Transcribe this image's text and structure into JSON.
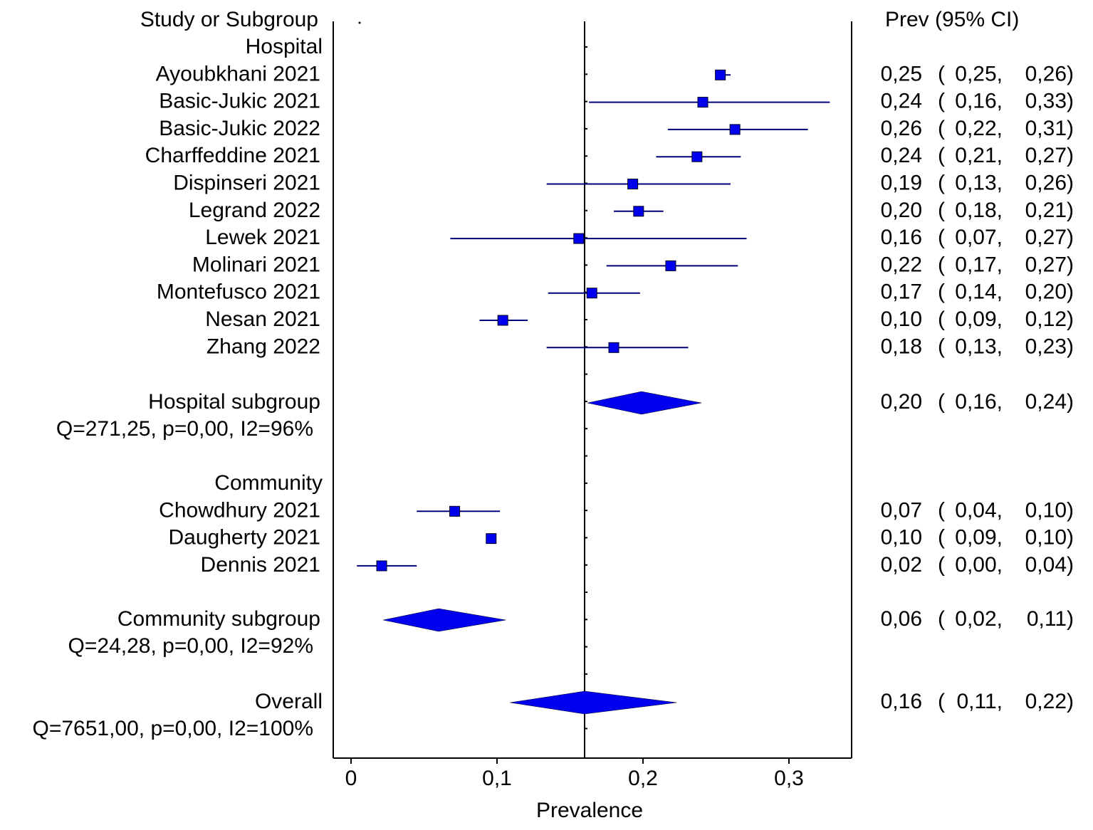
{
  "chart_data": {
    "type": "forest",
    "header_left": "Study or Subgroup",
    "header_right": "Prev (95% CI)",
    "xlabel": "Prevalence",
    "xlim": [
      -0.005,
      0.34
    ],
    "xticks": [
      0,
      0.1,
      0.2,
      0.3
    ],
    "xtick_labels": [
      "0",
      "0,1",
      "0,2",
      "0,3"
    ],
    "reference_line": 0.16,
    "colors": {
      "marker": "#0000ee",
      "line": "#00007a",
      "axis": "#000000"
    },
    "subgroups": [
      {
        "name": "Hospital",
        "studies": [
          {
            "label": "Ayoubkhani 2021",
            "prev": 0.253,
            "lo": 0.25,
            "hi": 0.26,
            "prev_text": "0,25",
            "lo_text": "0,25,",
            "hi_text": "0,26)"
          },
          {
            "label": "Basic-Jukic 2021",
            "prev": 0.241,
            "lo": 0.163,
            "hi": 0.328,
            "prev_text": "0,24",
            "lo_text": "0,16,",
            "hi_text": "0,33)"
          },
          {
            "label": "Basic-Jukic 2022",
            "prev": 0.263,
            "lo": 0.217,
            "hi": 0.313,
            "prev_text": "0,26",
            "lo_text": "0,22,",
            "hi_text": "0,31)"
          },
          {
            "label": "Charffeddine 2021",
            "prev": 0.237,
            "lo": 0.209,
            "hi": 0.267,
            "prev_text": "0,24",
            "lo_text": "0,21,",
            "hi_text": "0,27)"
          },
          {
            "label": "Dispinseri 2021",
            "prev": 0.193,
            "lo": 0.134,
            "hi": 0.26,
            "prev_text": "0,19",
            "lo_text": "0,13,",
            "hi_text": "0,26)"
          },
          {
            "label": "Legrand 2022",
            "prev": 0.197,
            "lo": 0.18,
            "hi": 0.214,
            "prev_text": "0,20",
            "lo_text": "0,18,",
            "hi_text": "0,21)"
          },
          {
            "label": "Lewek 2021",
            "prev": 0.156,
            "lo": 0.068,
            "hi": 0.271,
            "prev_text": "0,16",
            "lo_text": "0,07,",
            "hi_text": "0,27)"
          },
          {
            "label": "Molinari 2021",
            "prev": 0.219,
            "lo": 0.175,
            "hi": 0.265,
            "prev_text": "0,22",
            "lo_text": "0,17,",
            "hi_text": "0,27)"
          },
          {
            "label": "Montefusco 2021",
            "prev": 0.165,
            "lo": 0.135,
            "hi": 0.198,
            "prev_text": "0,17",
            "lo_text": "0,14,",
            "hi_text": "0,20)"
          },
          {
            "label": "Nesan 2021",
            "prev": 0.104,
            "lo": 0.088,
            "hi": 0.121,
            "prev_text": "0,10",
            "lo_text": "0,09,",
            "hi_text": "0,12)"
          },
          {
            "label": "Zhang 2022",
            "prev": 0.18,
            "lo": 0.134,
            "hi": 0.231,
            "prev_text": "0,18",
            "lo_text": "0,13,",
            "hi_text": "0,23)"
          }
        ],
        "pooled": {
          "label": "Hospital subgroup",
          "prev": 0.199,
          "lo": 0.162,
          "hi": 0.24,
          "prev_text": "0,20",
          "lo_text": "0,16,",
          "hi_text": "0,24)"
        },
        "heterogeneity": "Q=271,25, p=0,00, I2=96%"
      },
      {
        "name": "Community",
        "studies": [
          {
            "label": "Chowdhury 2021",
            "prev": 0.071,
            "lo": 0.045,
            "hi": 0.102,
            "prev_text": "0,07",
            "lo_text": "0,04,",
            "hi_text": "0,10)"
          },
          {
            "label": "Daugherty 2021",
            "prev": 0.096,
            "lo": 0.094,
            "hi": 0.098,
            "prev_text": "0,10",
            "lo_text": "0,09,",
            "hi_text": "0,10)"
          },
          {
            "label": "Dennis 2021",
            "prev": 0.021,
            "lo": 0.004,
            "hi": 0.045,
            "prev_text": "0,02",
            "lo_text": "0,00,",
            "hi_text": "0,04)"
          }
        ],
        "pooled": {
          "label": "Community subgroup",
          "prev": 0.06,
          "lo": 0.022,
          "hi": 0.106,
          "prev_text": "0,06",
          "lo_text": "0,02,",
          "hi_text": "0,11)"
        },
        "heterogeneity": "Q=24,28, p=0,00, I2=92%"
      }
    ],
    "overall": {
      "label": "Overall",
      "prev": 0.16,
      "lo": 0.109,
      "hi": 0.223,
      "prev_text": "0,16",
      "lo_text": "0,11,",
      "hi_text": "0,22)"
    },
    "overall_heterogeneity": "Q=7651,00, p=0,00, I2=100%"
  }
}
